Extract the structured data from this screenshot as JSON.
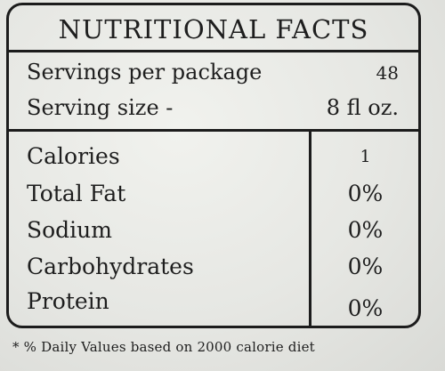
{
  "label": {
    "title": "NUTRITIONAL FACTS",
    "servings_per_package": {
      "label": "Servings per package",
      "value": "48"
    },
    "serving_size": {
      "label": "Serving size -",
      "value": "8 fl oz."
    },
    "nutrients": [
      {
        "label": "Calories",
        "value": "1"
      },
      {
        "label": "Total Fat",
        "value": "0%"
      },
      {
        "label": "Sodium",
        "value": "0%"
      },
      {
        "label": "Carbohydrates",
        "value": "0%"
      },
      {
        "label": "Protein",
        "value": "0%"
      }
    ],
    "footnote": "* % Daily Values based on 2000 calorie diet"
  }
}
